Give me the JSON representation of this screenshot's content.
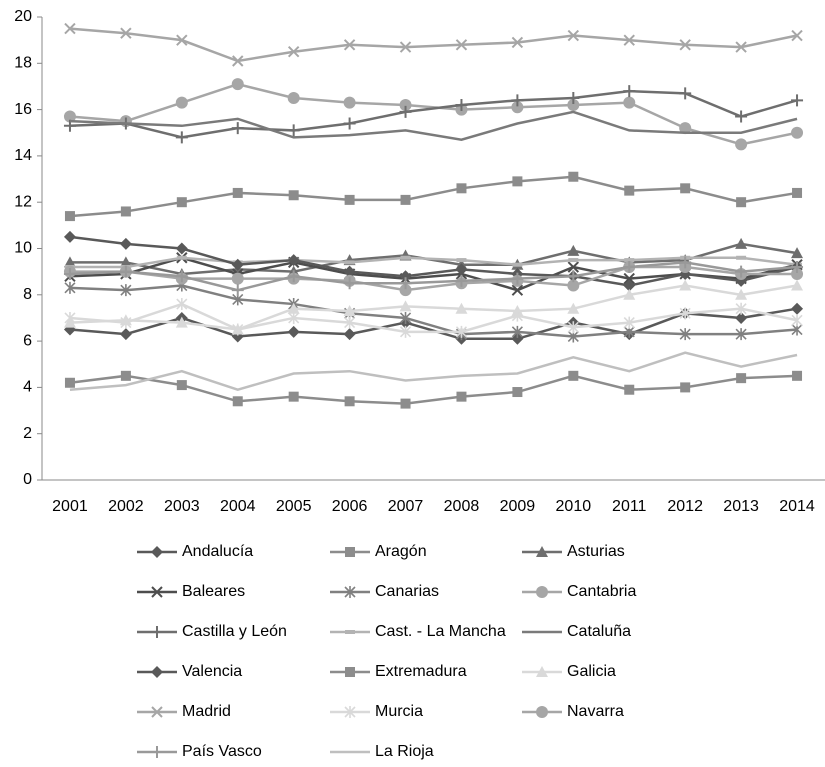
{
  "chart_data": {
    "type": "line",
    "categories": [
      "2001",
      "2002",
      "2003",
      "2004",
      "2005",
      "2006",
      "2007",
      "2008",
      "2009",
      "2010",
      "2011",
      "2012",
      "2013",
      "2014"
    ],
    "ylim": [
      0,
      20
    ],
    "yticks": [
      0,
      2,
      4,
      6,
      8,
      10,
      12,
      14,
      16,
      18,
      20
    ],
    "series": [
      {
        "name": "Andalucía",
        "color": "#595959",
        "marker": "diamond",
        "values": [
          6.5,
          6.3,
          7.0,
          6.2,
          6.4,
          6.3,
          6.8,
          6.1,
          6.1,
          6.8,
          6.3,
          7.2,
          7.0,
          7.4
        ]
      },
      {
        "name": "Aragón",
        "color": "#8c8c8c",
        "marker": "square",
        "values": [
          11.4,
          11.6,
          12.0,
          12.4,
          12.3,
          12.1,
          12.1,
          12.6,
          12.9,
          13.1,
          12.5,
          12.6,
          12.0,
          12.4
        ]
      },
      {
        "name": "Asturias",
        "color": "#6e6e6e",
        "marker": "triangle",
        "values": [
          9.4,
          9.4,
          8.9,
          9.1,
          9.0,
          9.5,
          9.7,
          9.3,
          9.3,
          9.9,
          9.4,
          9.5,
          10.2,
          9.8
        ]
      },
      {
        "name": "Baleares",
        "color": "#4d4d4d",
        "marker": "x",
        "values": [
          8.8,
          8.9,
          9.6,
          8.9,
          9.4,
          8.9,
          8.7,
          8.9,
          8.2,
          9.2,
          8.7,
          8.9,
          8.7,
          9.3
        ]
      },
      {
        "name": "Canarias",
        "color": "#808080",
        "marker": "star",
        "values": [
          8.3,
          8.2,
          8.4,
          7.8,
          7.6,
          7.2,
          7.0,
          6.3,
          6.4,
          6.2,
          6.4,
          6.3,
          6.3,
          6.5
        ]
      },
      {
        "name": "Cantabria",
        "color": "#a6a6a6",
        "marker": "circle",
        "values": [
          15.7,
          15.5,
          16.3,
          17.1,
          16.5,
          16.3,
          16.2,
          16.0,
          16.1,
          16.2,
          16.3,
          15.2,
          14.5,
          15.0
        ]
      },
      {
        "name": "Castilla y León",
        "color": "#6e6e6e",
        "marker": "plus",
        "values": [
          15.3,
          15.4,
          14.8,
          15.2,
          15.1,
          15.4,
          15.9,
          16.2,
          16.4,
          16.5,
          16.8,
          16.7,
          15.7,
          16.4
        ]
      },
      {
        "name": "Cast. - La Mancha",
        "color": "#b3b3b3",
        "marker": "dash",
        "values": [
          9.2,
          9.2,
          9.6,
          9.4,
          9.5,
          9.4,
          9.6,
          9.5,
          9.3,
          9.5,
          9.5,
          9.6,
          9.6,
          9.3
        ]
      },
      {
        "name": "Cataluña",
        "color": "#7a7a7a",
        "marker": "none",
        "values": [
          15.5,
          15.4,
          15.3,
          15.6,
          14.8,
          14.9,
          15.1,
          14.7,
          15.4,
          15.9,
          15.1,
          15.0,
          15.0,
          15.6
        ]
      },
      {
        "name": "Valencia",
        "color": "#595959",
        "marker": "diamond",
        "values": [
          10.5,
          10.2,
          10.0,
          9.3,
          9.5,
          9.0,
          8.8,
          9.1,
          8.9,
          8.8,
          8.4,
          8.9,
          8.6,
          9.2
        ]
      },
      {
        "name": "Extremadura",
        "color": "#8c8c8c",
        "marker": "square",
        "values": [
          4.2,
          4.5,
          4.1,
          3.4,
          3.6,
          3.4,
          3.3,
          3.6,
          3.8,
          4.5,
          3.9,
          4.0,
          4.4,
          4.5
        ]
      },
      {
        "name": "Galicia",
        "color": "#d9d9d9",
        "marker": "triangle",
        "values": [
          6.8,
          6.9,
          6.8,
          6.5,
          7.4,
          7.3,
          7.5,
          7.4,
          7.3,
          7.4,
          8.0,
          8.4,
          8.0,
          8.4
        ]
      },
      {
        "name": "Madrid",
        "color": "#a6a6a6",
        "marker": "x",
        "values": [
          19.5,
          19.3,
          19.0,
          18.1,
          18.5,
          18.8,
          18.7,
          18.8,
          18.9,
          19.2,
          19.0,
          18.8,
          18.7,
          19.2
        ]
      },
      {
        "name": "Murcia",
        "color": "#d9d9d9",
        "marker": "star",
        "values": [
          7.0,
          6.8,
          7.6,
          6.5,
          7.0,
          6.8,
          6.4,
          6.4,
          7.1,
          6.6,
          6.8,
          7.2,
          7.4,
          6.9
        ]
      },
      {
        "name": "Navarra",
        "color": "#a6a6a6",
        "marker": "circle",
        "values": [
          9.0,
          9.0,
          8.7,
          8.7,
          8.7,
          8.6,
          8.2,
          8.5,
          8.6,
          8.4,
          9.2,
          9.2,
          8.9,
          8.9
        ]
      },
      {
        "name": "País Vasco",
        "color": "#999999",
        "marker": "plus",
        "values": [
          8.9,
          9.0,
          8.8,
          8.2,
          8.8,
          8.5,
          8.5,
          8.6,
          8.7,
          8.8,
          9.2,
          9.4,
          9.0,
          9.2
        ]
      },
      {
        "name": "La Rioja",
        "color": "#bfbfbf",
        "marker": "none",
        "values": [
          3.9,
          4.1,
          4.7,
          3.9,
          4.6,
          4.7,
          4.3,
          4.5,
          4.6,
          5.3,
          4.7,
          5.5,
          4.9,
          5.4
        ]
      }
    ]
  }
}
